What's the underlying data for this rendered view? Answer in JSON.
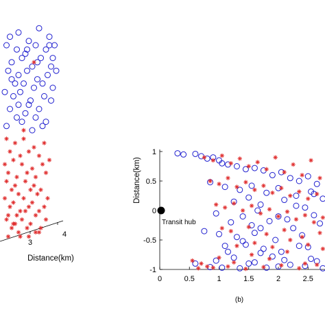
{
  "chart_data": [
    {
      "type": "scatter",
      "panel": "(a)",
      "view": "3d",
      "cropped": true,
      "xlabel": "Distance(km)",
      "ylabel": "",
      "tick_labels": [
        "3",
        "4"
      ],
      "series": [
        {
          "name": "",
          "marker": "circle",
          "color": "#1f1fcf",
          "x": [
            0.5,
            1.0,
            1.6,
            2.2,
            2.8,
            3.1,
            0.3,
            0.9,
            1.4,
            2.0,
            2.6,
            3.0,
            0.6,
            1.2,
            1.8,
            2.3,
            2.9,
            0.4,
            1.0,
            1.5,
            2.1,
            2.7,
            0.8,
            1.3,
            1.9,
            2.4,
            3.2,
            0.2,
            0.7,
            1.1,
            1.7,
            2.5,
            0.5,
            1.6,
            2.2,
            2.9,
            0.9,
            1.4,
            2.0,
            2.6,
            0.3,
            1.2,
            1.8,
            2.4,
            3.0,
            0.6,
            1.5,
            2.1,
            2.8,
            1.0
          ],
          "y": [
            4.7,
            4.8,
            4.6,
            4.9,
            4.7,
            4.5,
            4.5,
            4.4,
            4.3,
            4.5,
            4.4,
            4.2,
            4.1,
            4.2,
            4.0,
            4.2,
            4.0,
            3.9,
            3.8,
            3.9,
            3.7,
            3.8,
            3.6,
            3.6,
            3.5,
            3.6,
            3.9,
            3.4,
            3.3,
            3.4,
            3.2,
            3.3,
            3.0,
            3.1,
            3.0,
            3.2,
            2.8,
            2.9,
            2.8,
            2.7,
            2.6,
            2.7,
            2.5,
            2.6,
            3.5,
            3.7,
            4.4,
            4.1,
            4.5,
            3.1
          ]
        },
        {
          "name": "",
          "marker": "asterisk",
          "color": "#e03030",
          "x": [
            0.3,
            0.8,
            1.3,
            1.9,
            2.5,
            0.5,
            1.1,
            1.6,
            2.2,
            2.8,
            0.2,
            0.7,
            1.2,
            1.8,
            2.4,
            0.4,
            0.9,
            1.5,
            2.0,
            2.6,
            0.3,
            0.8,
            1.4,
            1.9,
            2.3,
            0.6,
            1.0,
            1.7,
            2.1,
            2.7,
            0.2,
            0.7,
            1.3,
            1.8,
            2.5,
            0.5,
            1.1,
            1.6,
            2.2,
            0.4,
            0.9,
            1.4,
            2.0,
            2.6,
            0.3,
            0.8,
            1.2,
            1.7,
            2.3,
            0.6,
            1.0,
            1.5,
            2.0,
            0.4,
            1.1,
            1.6,
            2.2,
            0.7,
            1.3,
            1.9
          ],
          "y": [
            2.3,
            2.2,
            2.3,
            2.1,
            2.2,
            2.0,
            1.9,
            2.0,
            1.9,
            1.8,
            1.7,
            1.8,
            1.7,
            1.6,
            1.7,
            1.5,
            1.4,
            1.5,
            1.4,
            1.5,
            1.3,
            1.2,
            1.3,
            1.2,
            1.1,
            1.1,
            1.0,
            1.1,
            1.0,
            0.9,
            0.9,
            0.8,
            0.9,
            0.8,
            0.7,
            0.7,
            0.6,
            0.7,
            0.6,
            0.5,
            0.5,
            0.6,
            0.5,
            0.4,
            0.4,
            0.3,
            0.4,
            0.3,
            0.2,
            0.2,
            0.1,
            0.2,
            0.1,
            0.0,
            0.0,
            0.0,
            0.1,
            0.3,
            2.5,
            4.1
          ]
        }
      ]
    },
    {
      "type": "scatter",
      "panel": "(b)",
      "caption": "(b)",
      "xlabel": "",
      "ylabel": "Distance(km)",
      "xlim": [
        0,
        3
      ],
      "ylim": [
        -1,
        1
      ],
      "xticks": [
        "0",
        "0.5",
        "1",
        "1.5",
        "2",
        "2.5"
      ],
      "yticks": [
        "1",
        "0.5",
        "0",
        "-0.5",
        "-1"
      ],
      "annotation": {
        "text": "Transit hub",
        "x": 0,
        "y": 0
      },
      "series": [
        {
          "name": "",
          "marker": "circle",
          "color": "#1f1fcf",
          "x": [
            0.3,
            0.4,
            0.6,
            0.7,
            0.8,
            0.9,
            1.0,
            1.05,
            1.15,
            1.3,
            1.45,
            1.6,
            1.75,
            1.9,
            2.05,
            2.2,
            2.35,
            2.5,
            2.65,
            2.8,
            0.85,
            1.1,
            1.35,
            1.55,
            1.8,
            2.0,
            2.3,
            2.55,
            2.75,
            1.25,
            1.5,
            1.7,
            2.1,
            2.45,
            2.9,
            0.95,
            1.4,
            1.65,
            2.15,
            2.6,
            1.2,
            1.55,
            1.85,
            2.25,
            2.7,
            0.75,
            1.0,
            1.3,
            1.6,
            1.95,
            2.4,
            2.85,
            1.1,
            1.45,
            1.75,
            2.05,
            2.5,
            2.8,
            0.6,
            0.95,
            1.25,
            1.6,
            1.9,
            2.2,
            2.55,
            2.9,
            1.35,
            1.7,
            2.0,
            2.35,
            2.65,
            1.05,
            1.5,
            1.8,
            2.1,
            2.45,
            2.75,
            0.85,
            1.15,
            1.4,
            1.7,
            2.0,
            2.3,
            2.6,
            2.9
          ],
          "y": [
            0.97,
            0.95,
            0.96,
            0.92,
            0.88,
            0.9,
            0.85,
            0.8,
            0.78,
            0.75,
            0.7,
            0.72,
            0.68,
            0.6,
            0.65,
            0.55,
            0.5,
            0.58,
            0.45,
            0.52,
            0.48,
            0.4,
            0.35,
            0.42,
            0.3,
            0.38,
            0.25,
            0.32,
            0.2,
            0.15,
            0.22,
            0.1,
            0.18,
            0.05,
            0.12,
            -0.05,
            -0.1,
            0.0,
            -0.15,
            -0.08,
            -0.2,
            -0.25,
            -0.18,
            -0.3,
            -0.22,
            -0.35,
            -0.4,
            -0.45,
            -0.38,
            -0.5,
            -0.42,
            -0.55,
            -0.6,
            -0.58,
            -0.65,
            -0.7,
            -0.62,
            -0.75,
            -0.9,
            -0.85,
            -0.8,
            -0.88,
            -0.78,
            -0.92,
            -0.82,
            -0.95,
            -0.98,
            -0.72,
            -0.95,
            -0.6,
            -0.86,
            -0.97,
            -0.9,
            -0.97,
            -0.84,
            -0.94,
            -0.98,
            -0.96,
            -0.7,
            -0.52,
            -0.3,
            -0.1,
            0.08,
            0.28,
            0.62
          ]
        },
        {
          "name": "",
          "marker": "asterisk",
          "color": "#e03030",
          "x": [
            0.75,
            0.9,
            1.05,
            1.2,
            1.35,
            1.5,
            1.65,
            1.8,
            1.95,
            2.1,
            2.25,
            2.4,
            2.55,
            2.7,
            2.85,
            0.85,
            1.0,
            1.15,
            1.3,
            1.45,
            1.6,
            1.75,
            1.9,
            2.05,
            2.2,
            2.35,
            2.5,
            2.65,
            2.8,
            0.95,
            1.1,
            1.25,
            1.4,
            1.55,
            1.7,
            1.85,
            2.0,
            2.15,
            2.3,
            2.45,
            2.6,
            2.75,
            2.9,
            1.05,
            1.2,
            1.5,
            1.8,
            2.1,
            2.4,
            2.7,
            0.55,
            0.7,
            0.8,
            1.0,
            1.25,
            1.55,
            1.85,
            2.15,
            2.45,
            2.75,
            0.65,
            0.9,
            1.15,
            1.45,
            1.75,
            2.05,
            2.35,
            2.65,
            2.95,
            1.3,
            1.6,
            1.9,
            2.2,
            2.5,
            2.8
          ],
          "y": [
            0.9,
            0.85,
            0.93,
            0.8,
            0.88,
            0.75,
            0.82,
            0.7,
            0.9,
            0.65,
            0.78,
            0.6,
            0.85,
            0.55,
            0.72,
            0.5,
            0.45,
            0.55,
            0.4,
            0.48,
            0.35,
            0.42,
            0.3,
            0.38,
            0.25,
            0.32,
            0.2,
            0.28,
            0.15,
            0.1,
            0.05,
            0.12,
            0.0,
            0.08,
            -0.05,
            0.02,
            -0.1,
            -0.02,
            -0.15,
            -0.08,
            -0.2,
            -0.12,
            -0.25,
            -0.3,
            -0.35,
            -0.28,
            -0.4,
            -0.33,
            -0.45,
            -0.38,
            -0.85,
            -0.9,
            -0.95,
            -0.8,
            -0.88,
            -0.75,
            -0.82,
            -0.7,
            -0.9,
            -0.65,
            -0.98,
            -0.97,
            -0.95,
            -0.99,
            -0.96,
            -0.93,
            -0.98,
            -0.92,
            -0.88,
            -0.6,
            -0.55,
            -0.62,
            -0.5,
            -0.58,
            -0.45
          ]
        }
      ]
    }
  ]
}
